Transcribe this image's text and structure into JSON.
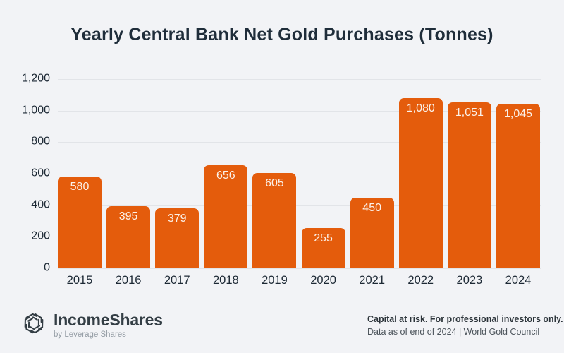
{
  "page": {
    "background": "#F2F3F6"
  },
  "chart_data": {
    "type": "bar",
    "title": "Yearly Central Bank Net Gold Purchases (Tonnes)",
    "categories": [
      "2015",
      "2016",
      "2017",
      "2018",
      "2019",
      "2020",
      "2021",
      "2022",
      "2023",
      "2024"
    ],
    "values": [
      580,
      395,
      379,
      656,
      605,
      255,
      450,
      1080,
      1051,
      1045
    ],
    "value_labels": [
      "580",
      "395",
      "379",
      "656",
      "605",
      "255",
      "450",
      "1,080",
      "1,051",
      "1,045"
    ],
    "xlabel": "",
    "ylabel": "",
    "ylim": [
      0,
      1200
    ],
    "yticks": [
      {
        "value": 0,
        "label": "0"
      },
      {
        "value": 200,
        "label": "200"
      },
      {
        "value": 400,
        "label": "400"
      },
      {
        "value": 600,
        "label": "600"
      },
      {
        "value": 800,
        "label": "800"
      },
      {
        "value": 1000,
        "label": "1,000"
      },
      {
        "value": 1200,
        "label": "1,200"
      }
    ],
    "grid": true,
    "legend": false,
    "bar_color": "#E45C0C",
    "bar_label_color": "#FBF1E9",
    "grid_color": "#E2E4E8",
    "axis_label_color": "#1D2935",
    "title_color": "#1F2D3A"
  },
  "footer": {
    "brand": {
      "name": "IncomeShares",
      "tagline": "by Leverage Shares",
      "logo_icon": "hex-pinwheel-logo-icon",
      "logo_color": "#333D44"
    },
    "disclaimer_bold": "Capital at risk. For professional investors only.",
    "disclaimer_source": "Data as of end of 2024 | World Gold Council"
  }
}
